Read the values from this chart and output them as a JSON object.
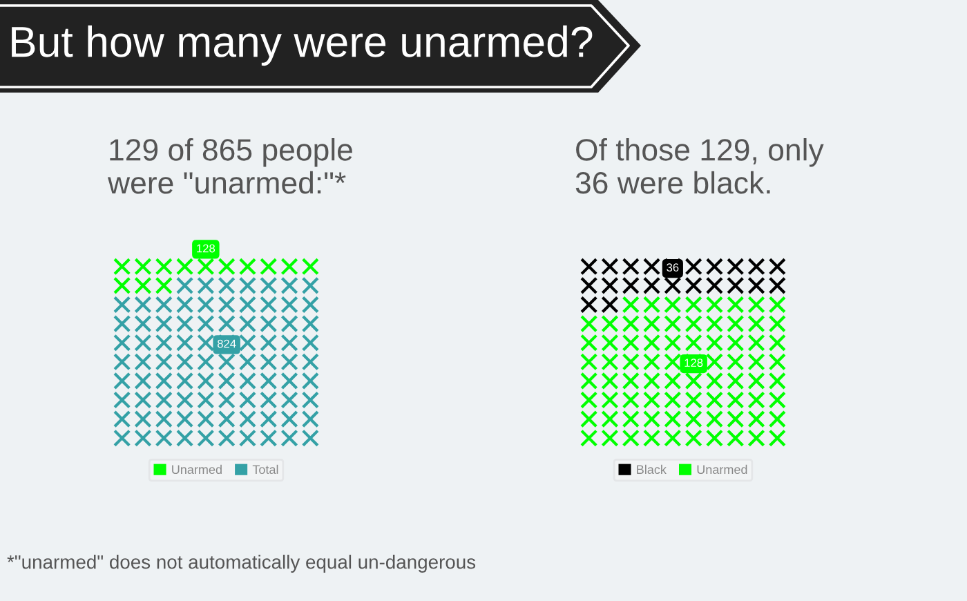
{
  "chart_data": [
    {
      "type": "other",
      "title": "129 of 865 people\nwere \"unarmed:\"*",
      "categories": [
        "Unarmed",
        "Total"
      ],
      "values": [
        128,
        824
      ],
      "colors": [
        "#00ff00",
        "#34a1a6"
      ],
      "data_labels": true,
      "annotations": [
        "But how many were unarmed?",
        "*\"unarmed\" does not automatically equal un-dangerous"
      ]
    },
    {
      "type": "other",
      "title": "Of those 129, only\n36 were black.",
      "categories": [
        "Black",
        "Unarmed"
      ],
      "values": [
        36,
        128
      ],
      "colors": [
        "#000000",
        "#00ff00"
      ],
      "data_labels": true
    }
  ]
}
